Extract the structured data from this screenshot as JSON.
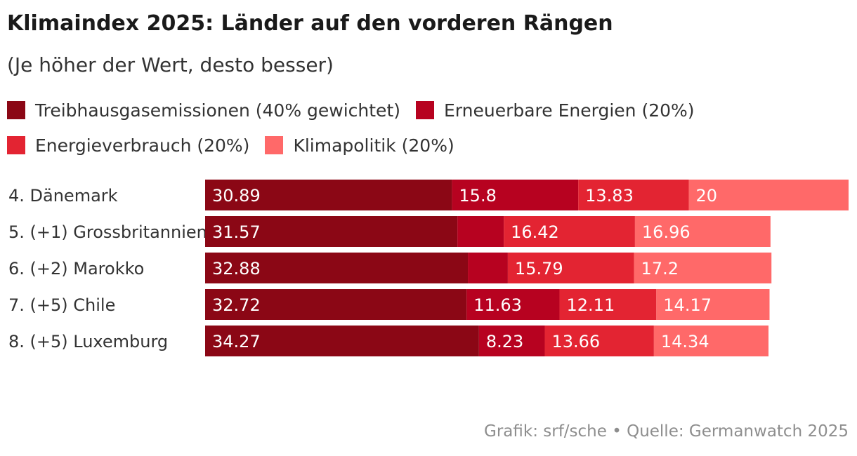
{
  "title": "Klimaindex 2025: Länder auf den vorderen Rängen",
  "subtitle": "(Je höher der Wert, desto besser)",
  "source": "Grafik: srf/sche • Quelle: Germanwatch 2025",
  "legend": [
    {
      "label": "Treibhausgasemissionen (40% gewichtet)",
      "color": "#8b0715"
    },
    {
      "label": "Erneuerbare Energien (20%)",
      "color": "#b70220"
    },
    {
      "label": "Energieverbrauch (20%)",
      "color": "#e32432"
    },
    {
      "label": "Klimapolitik (20%)",
      "color": "#ff6969"
    }
  ],
  "chart_data": {
    "type": "bar",
    "orientation": "horizontal",
    "stacked": true,
    "categories": [
      "4. Dänemark",
      "5. (+1) Grossbritannien",
      "6. (+2) Marokko",
      "7. (+5) Chile",
      "8. (+5) Luxemburg"
    ],
    "series": [
      {
        "name": "Treibhausgasemissionen (40% gewichtet)",
        "color": "#8b0715",
        "values": [
          30.89,
          31.57,
          32.88,
          32.72,
          34.27
        ],
        "labels": [
          "30.89",
          "31.57",
          "32.88",
          "32.72",
          "34.27"
        ]
      },
      {
        "name": "Erneuerbare Energien (20%)",
        "color": "#b70220",
        "values": [
          15.8,
          5.8,
          5.0,
          11.63,
          8.23
        ],
        "labels": [
          "15.8",
          "",
          "",
          "11.63",
          "8.23"
        ]
      },
      {
        "name": "Energieverbrauch (20%)",
        "color": "#e32432",
        "values": [
          13.83,
          16.42,
          15.79,
          12.11,
          13.66
        ],
        "labels": [
          "13.83",
          "16.42",
          "15.79",
          "12.11",
          "13.66"
        ]
      },
      {
        "name": "Klimapolitik (20%)",
        "color": "#ff6969",
        "values": [
          20,
          16.96,
          17.2,
          14.17,
          14.34
        ],
        "labels": [
          "20",
          "16.96",
          "17.2",
          "14.17",
          "14.34"
        ]
      }
    ],
    "xlim": [
      0,
      80.52
    ],
    "grid": false,
    "legend_position": "top-left"
  }
}
